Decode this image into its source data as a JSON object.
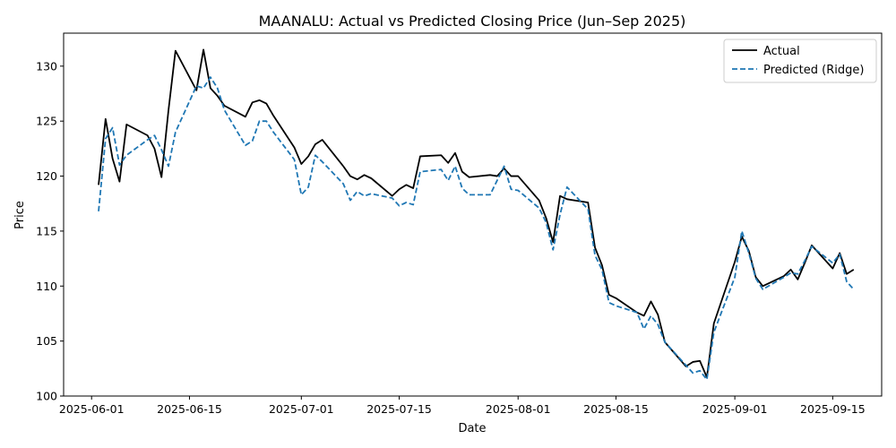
{
  "chart_data": {
    "type": "line",
    "title": "MAANALU: Actual vs Predicted Closing Price (Jun–Sep 2025)",
    "xlabel": "Date",
    "ylabel": "Price",
    "xlim": [
      "2025-05-28",
      "2025-09-22"
    ],
    "ylim": [
      100,
      133
    ],
    "x_ticks": [
      "2025-06-01",
      "2025-06-15",
      "2025-07-01",
      "2025-07-15",
      "2025-08-01",
      "2025-08-15",
      "2025-09-01",
      "2025-09-15"
    ],
    "y_ticks": [
      100,
      105,
      110,
      115,
      120,
      125,
      130
    ],
    "grid": false,
    "legend_position": "top-right",
    "x": [
      "2025-06-02",
      "2025-06-03",
      "2025-06-04",
      "2025-06-05",
      "2025-06-06",
      "2025-06-09",
      "2025-06-10",
      "2025-06-11",
      "2025-06-12",
      "2025-06-13",
      "2025-06-16",
      "2025-06-17",
      "2025-06-18",
      "2025-06-19",
      "2025-06-20",
      "2025-06-23",
      "2025-06-24",
      "2025-06-25",
      "2025-06-26",
      "2025-06-27",
      "2025-06-30",
      "2025-07-01",
      "2025-07-02",
      "2025-07-03",
      "2025-07-04",
      "2025-07-07",
      "2025-07-08",
      "2025-07-09",
      "2025-07-10",
      "2025-07-11",
      "2025-07-14",
      "2025-07-15",
      "2025-07-16",
      "2025-07-17",
      "2025-07-18",
      "2025-07-21",
      "2025-07-22",
      "2025-07-23",
      "2025-07-24",
      "2025-07-25",
      "2025-07-28",
      "2025-07-29",
      "2025-07-30",
      "2025-07-31",
      "2025-08-01",
      "2025-08-04",
      "2025-08-05",
      "2025-08-06",
      "2025-08-07",
      "2025-08-08",
      "2025-08-11",
      "2025-08-12",
      "2025-08-13",
      "2025-08-14",
      "2025-08-15",
      "2025-08-18",
      "2025-08-19",
      "2025-08-20",
      "2025-08-21",
      "2025-08-22",
      "2025-08-25",
      "2025-08-26",
      "2025-08-27",
      "2025-08-28",
      "2025-08-29",
      "2025-09-01",
      "2025-09-02",
      "2025-09-03",
      "2025-09-04",
      "2025-09-05",
      "2025-09-08",
      "2025-09-09",
      "2025-09-10",
      "2025-09-11",
      "2025-09-12",
      "2025-09-15",
      "2025-09-16",
      "2025-09-17",
      "2025-09-18"
    ],
    "series": [
      {
        "name": "Actual",
        "color": "#000000",
        "style": "solid",
        "values": [
          119.2,
          125.2,
          121.6,
          119.5,
          124.7,
          123.7,
          122.5,
          119.9,
          126.0,
          131.4,
          127.8,
          131.5,
          128.0,
          127.3,
          126.4,
          125.4,
          126.7,
          126.9,
          126.6,
          125.5,
          122.6,
          121.1,
          121.8,
          122.9,
          123.3,
          120.9,
          120.0,
          119.7,
          120.1,
          119.8,
          118.2,
          118.8,
          119.2,
          118.9,
          121.8,
          121.9,
          121.2,
          122.1,
          120.4,
          119.9,
          120.1,
          120.0,
          120.7,
          120.0,
          120.0,
          117.8,
          116.2,
          114.0,
          118.2,
          117.9,
          117.6,
          113.5,
          111.9,
          109.2,
          108.9,
          107.6,
          107.3,
          108.6,
          107.4,
          104.9,
          102.7,
          103.1,
          103.2,
          101.7,
          106.6,
          112.2,
          114.5,
          113.2,
          110.8,
          110.0,
          110.9,
          111.5,
          110.6,
          112.1,
          113.7,
          111.6,
          113.0,
          111.1,
          111.5
        ]
      },
      {
        "name": "Predicted (Ridge)",
        "color": "#1f77b4",
        "style": "dashed",
        "values": [
          116.8,
          123.4,
          124.4,
          121.0,
          121.9,
          123.3,
          123.7,
          122.4,
          120.9,
          124.0,
          128.2,
          128.0,
          129.0,
          128.0,
          126.0,
          122.8,
          123.2,
          125.0,
          125.0,
          124.0,
          121.5,
          118.3,
          119.0,
          121.9,
          121.3,
          119.3,
          117.8,
          118.6,
          118.2,
          118.4,
          118.0,
          117.3,
          117.6,
          117.4,
          120.4,
          120.6,
          119.6,
          120.9,
          118.9,
          118.3,
          118.3,
          119.6,
          120.9,
          118.8,
          118.7,
          117.1,
          115.8,
          113.3,
          116.5,
          119.0,
          117.0,
          112.8,
          111.5,
          108.5,
          108.2,
          107.6,
          106.1,
          107.3,
          106.5,
          104.9,
          102.8,
          102.1,
          102.3,
          101.5,
          105.8,
          110.8,
          115.0,
          113.0,
          110.7,
          109.7,
          110.8,
          111.2,
          111.1,
          112.3,
          113.6,
          112.1,
          112.9,
          110.4,
          109.7
        ]
      }
    ]
  }
}
